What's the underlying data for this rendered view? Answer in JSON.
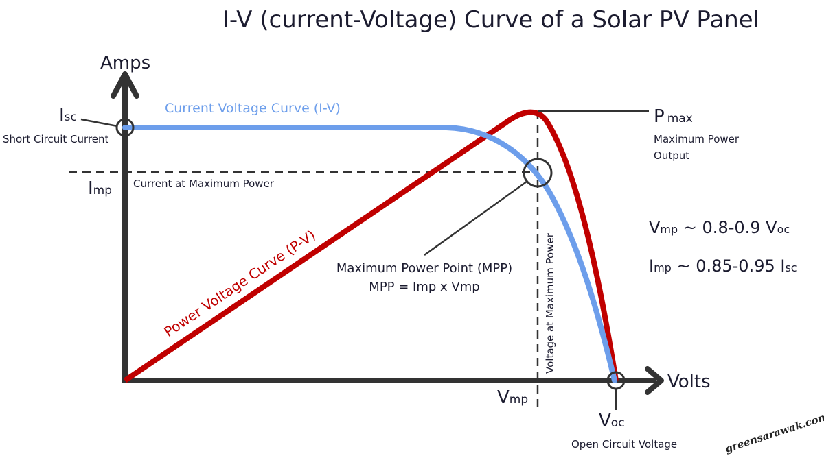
{
  "title": "I-V (current-Voltage) Curve of a Solar PV Panel",
  "axes": {
    "y_label": "Amps",
    "x_label": "Volts"
  },
  "curves": {
    "iv_label": "Current Voltage Curve (I-V)",
    "pv_label": "Power Voltage Curve (P-V)",
    "iv_color": "#6d9eeb",
    "pv_color": "#c00000"
  },
  "labels": {
    "isc_main": "I",
    "isc_sub": "sc",
    "isc_desc": "Short Circuit Current",
    "imp_main": "I",
    "imp_sub": "mp",
    "imp_desc": "Current at Maximum Power",
    "pmax_main": "P",
    "pmax_sub": "max",
    "pmax_desc1": "Maximum Power",
    "pmax_desc2": "Output",
    "mpp_line1": "Maximum Power Point (MPP)",
    "mpp_line2": "MPP = Imp x Vmp",
    "vmp_main": "V",
    "vmp_sub": "mp",
    "vmp_desc": "Voltage at Maximum Power",
    "voc_main": "V",
    "voc_sub": "oc",
    "voc_desc": "Open Circuit Voltage"
  },
  "formulas": {
    "f1_a": "V",
    "f1_a_sub": "mp",
    "f1_mid": " ~ 0.8-0.9 ",
    "f1_b": "V",
    "f1_b_sub": "oc",
    "f2_a": "I",
    "f2_a_sub": "mp",
    "f2_mid": " ~ 0.85-0.95 ",
    "f2_b": "I",
    "f2_b_sub": "sc"
  },
  "watermark": "greensarawak.com"
}
